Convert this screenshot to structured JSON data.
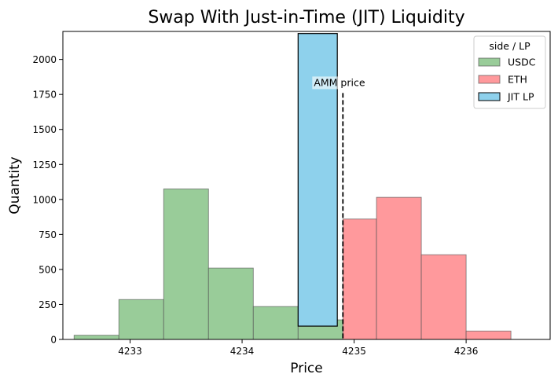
{
  "chart_data": {
    "type": "bar",
    "title": "Swap With Just-in-Time (JIT) Liquidity",
    "xlabel": "Price",
    "ylabel": "Quantity",
    "xlim": [
      4232.4,
      4236.75
    ],
    "ylim": [
      0,
      2200
    ],
    "x_ticks": [
      4233,
      4234,
      4235,
      4236
    ],
    "y_ticks": [
      0,
      250,
      500,
      750,
      1000,
      1250,
      1500,
      1750,
      2000
    ],
    "grid": false,
    "legend": {
      "title": "side / LP",
      "position": "top-right",
      "entries": [
        {
          "label": "USDC",
          "color": "#99cc99"
        },
        {
          "label": "ETH",
          "color": "#ff999c"
        },
        {
          "label": "JIT LP",
          "color": "#8ed1ec"
        }
      ]
    },
    "series": [
      {
        "name": "USDC",
        "color": "#99cc99",
        "bars": [
          {
            "x0": 4232.5,
            "x1": 4232.9,
            "bottom": 0,
            "value": 30
          },
          {
            "x0": 4232.9,
            "x1": 4233.3,
            "bottom": 0,
            "value": 285
          },
          {
            "x0": 4233.3,
            "x1": 4233.7,
            "bottom": 0,
            "value": 1075
          },
          {
            "x0": 4233.7,
            "x1": 4234.1,
            "bottom": 0,
            "value": 510
          },
          {
            "x0": 4234.1,
            "x1": 4234.5,
            "bottom": 0,
            "value": 235
          },
          {
            "x0": 4234.5,
            "x1": 4234.9,
            "bottom": 0,
            "value": 140
          }
        ]
      },
      {
        "name": "ETH",
        "color": "#ff999c",
        "bars": [
          {
            "x0": 4234.9,
            "x1": 4235.2,
            "bottom": 0,
            "value": 860
          },
          {
            "x0": 4235.2,
            "x1": 4235.6,
            "bottom": 0,
            "value": 1015
          },
          {
            "x0": 4235.6,
            "x1": 4236.0,
            "bottom": 0,
            "value": 605
          },
          {
            "x0": 4236.0,
            "x1": 4236.4,
            "bottom": 0,
            "value": 60
          }
        ]
      },
      {
        "name": "JIT LP",
        "color": "#8ed1ec",
        "bars": [
          {
            "x0": 4234.5,
            "x1": 4234.85,
            "bottom": 95,
            "value": 2090
          }
        ]
      }
    ],
    "annotations": [
      {
        "text": "AMM price",
        "x": 4234.9,
        "y_top": 1760,
        "style": "dashed-vertical-line"
      }
    ]
  }
}
